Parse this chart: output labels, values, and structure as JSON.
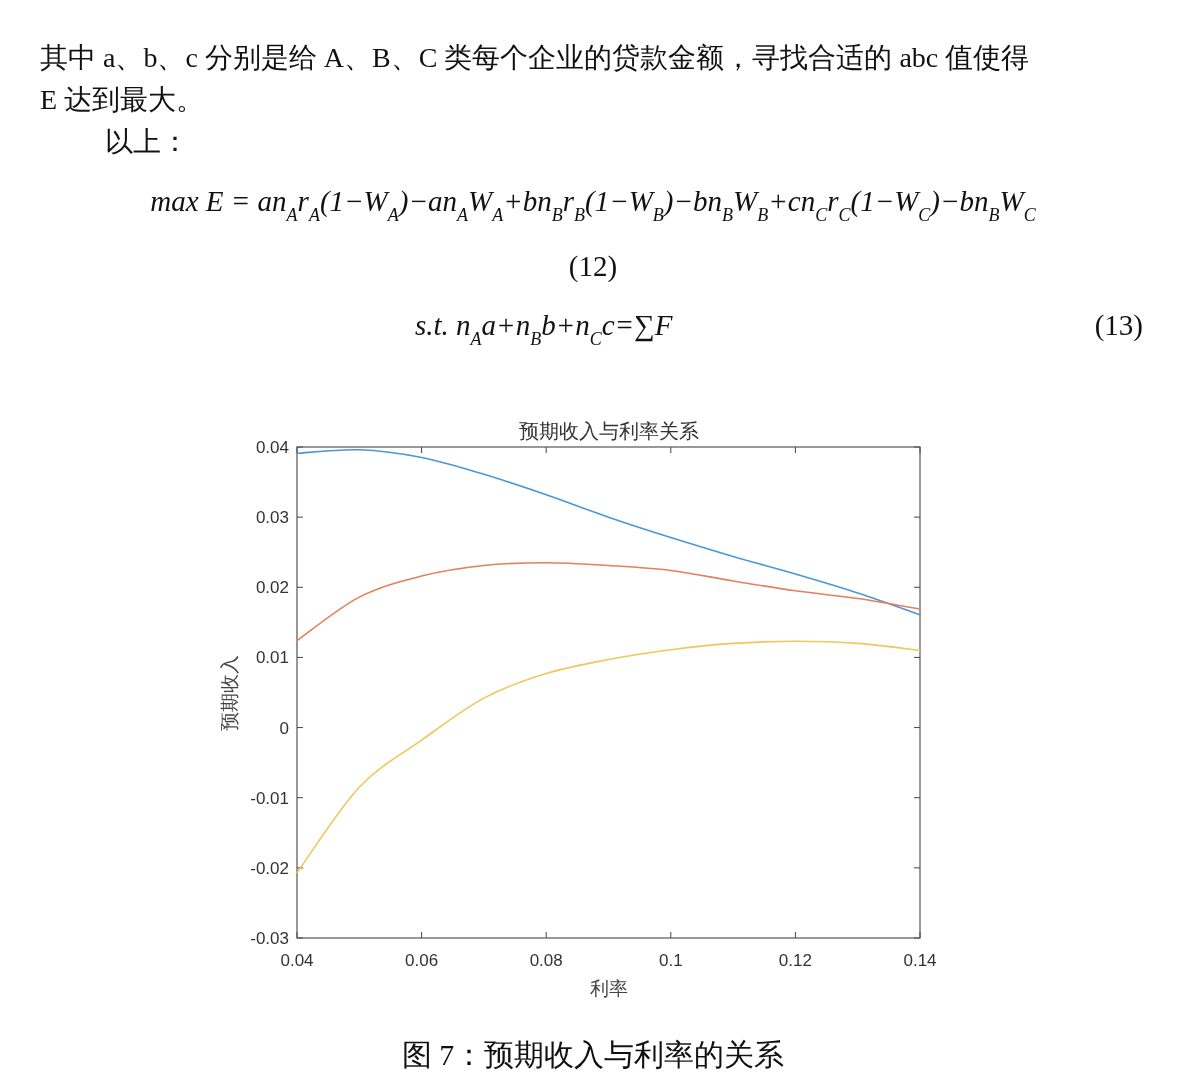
{
  "chart_data": {
    "type": "line",
    "title": "预期收入与利率关系",
    "xlabel": "利率",
    "ylabel": "预期收入",
    "x": [
      0.04,
      0.05,
      0.06,
      0.07,
      0.08,
      0.09,
      0.1,
      0.11,
      0.12,
      0.13,
      0.14
    ],
    "series": [
      {
        "color": "#4a97d6",
        "values": [
          0.0391,
          0.0396,
          0.0385,
          0.0361,
          0.0332,
          0.03,
          0.0271,
          0.0244,
          0.0219,
          0.0192,
          0.0161
        ]
      },
      {
        "color": "#e57f5e",
        "values": [
          0.0124,
          0.0186,
          0.0216,
          0.0231,
          0.0235,
          0.0231,
          0.0224,
          0.0209,
          0.0195,
          0.0184,
          0.0169
        ]
      },
      {
        "color": "#efc75a",
        "values": [
          -0.0207,
          -0.0085,
          -0.0018,
          0.0042,
          0.0077,
          0.0097,
          0.0111,
          0.012,
          0.0123,
          0.012,
          0.011
        ]
      }
    ],
    "xlim": [
      0.04,
      0.14
    ],
    "ylim": [
      -0.03,
      0.04
    ],
    "xticks": [
      0.04,
      0.06,
      0.08,
      0.1,
      0.12,
      0.14
    ],
    "yticks": [
      -0.03,
      -0.02,
      -0.01,
      0,
      0.01,
      0.02,
      0.03,
      0.04
    ],
    "annotations": [
      "其中 a、b、c 分别是给 A、B、C 类每个企业的贷款金额，寻找合适的 abc 值使得",
      "E 达到最大。",
      "以上：",
      "max  E = an$_{A}$r$_{A}$(1−W$_{A}$)−an$_{A}$W$_{A}$+bn$_{B}$r$_{B}$(1−W$_{B}$)−bn$_{B}$W$_{B}$+cn$_{C}$r$_{C}$(1−W$_{C}$)−bn$_{B}$W$_{C}$",
      "(12)",
      "s.t.   n$_{A}$a+n$_{B}$b+n$_{C}$c=∑F",
      "(13)",
      "图 7：预期收入与利率的关系"
    ]
  }
}
